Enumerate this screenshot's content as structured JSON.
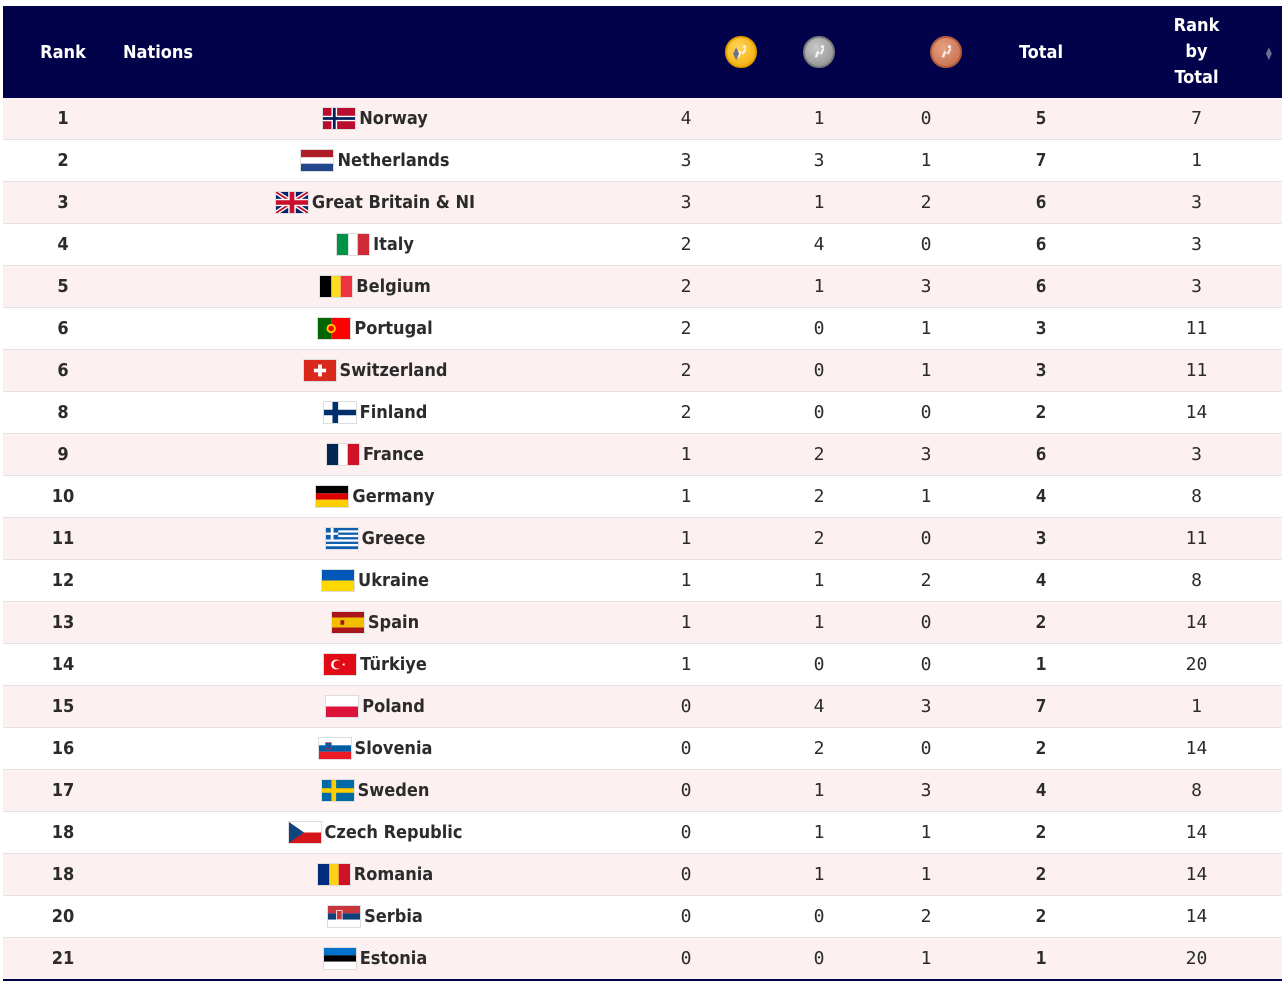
{
  "header": {
    "rank": "Rank",
    "nations": "Nations",
    "gold_icon": "gold-medal-icon",
    "silver_icon": "silver-medal-icon",
    "bronze_icon": "bronze-medal-icon",
    "total": "Total",
    "rank_by_total_line1": "Rank",
    "rank_by_total_line2": "by",
    "rank_by_total_line3": "Total",
    "sort_icon": "sort-icon"
  },
  "colors": {
    "header_bg": "#02024a",
    "row_alt_bg": "#fcf1f0",
    "gold": "#f0a800",
    "silver": "#8a8a8a",
    "bronze": "#c0684a"
  },
  "rows": [
    {
      "rank": "1",
      "flag": "norway-flag-icon",
      "nation": "Norway",
      "gold": "4",
      "silver": "1",
      "bronze": "0",
      "total": "5",
      "rank_by_total": "7"
    },
    {
      "rank": "2",
      "flag": "netherlands-flag-icon",
      "nation": "Netherlands",
      "gold": "3",
      "silver": "3",
      "bronze": "1",
      "total": "7",
      "rank_by_total": "1"
    },
    {
      "rank": "3",
      "flag": "great-britain-flag-icon",
      "nation": "Great Britain & NI",
      "gold": "3",
      "silver": "1",
      "bronze": "2",
      "total": "6",
      "rank_by_total": "3"
    },
    {
      "rank": "4",
      "flag": "italy-flag-icon",
      "nation": "Italy",
      "gold": "2",
      "silver": "4",
      "bronze": "0",
      "total": "6",
      "rank_by_total": "3"
    },
    {
      "rank": "5",
      "flag": "belgium-flag-icon",
      "nation": "Belgium",
      "gold": "2",
      "silver": "1",
      "bronze": "3",
      "total": "6",
      "rank_by_total": "3"
    },
    {
      "rank": "6",
      "flag": "portugal-flag-icon",
      "nation": "Portugal",
      "gold": "2",
      "silver": "0",
      "bronze": "1",
      "total": "3",
      "rank_by_total": "11"
    },
    {
      "rank": "6",
      "flag": "switzerland-flag-icon",
      "nation": "Switzerland",
      "gold": "2",
      "silver": "0",
      "bronze": "1",
      "total": "3",
      "rank_by_total": "11"
    },
    {
      "rank": "8",
      "flag": "finland-flag-icon",
      "nation": "Finland",
      "gold": "2",
      "silver": "0",
      "bronze": "0",
      "total": "2",
      "rank_by_total": "14"
    },
    {
      "rank": "9",
      "flag": "france-flag-icon",
      "nation": "France",
      "gold": "1",
      "silver": "2",
      "bronze": "3",
      "total": "6",
      "rank_by_total": "3"
    },
    {
      "rank": "10",
      "flag": "germany-flag-icon",
      "nation": "Germany",
      "gold": "1",
      "silver": "2",
      "bronze": "1",
      "total": "4",
      "rank_by_total": "8"
    },
    {
      "rank": "11",
      "flag": "greece-flag-icon",
      "nation": "Greece",
      "gold": "1",
      "silver": "2",
      "bronze": "0",
      "total": "3",
      "rank_by_total": "11"
    },
    {
      "rank": "12",
      "flag": "ukraine-flag-icon",
      "nation": "Ukraine",
      "gold": "1",
      "silver": "1",
      "bronze": "2",
      "total": "4",
      "rank_by_total": "8"
    },
    {
      "rank": "13",
      "flag": "spain-flag-icon",
      "nation": "Spain",
      "gold": "1",
      "silver": "1",
      "bronze": "0",
      "total": "2",
      "rank_by_total": "14"
    },
    {
      "rank": "14",
      "flag": "turkiye-flag-icon",
      "nation": "Türkiye",
      "gold": "1",
      "silver": "0",
      "bronze": "0",
      "total": "1",
      "rank_by_total": "20"
    },
    {
      "rank": "15",
      "flag": "poland-flag-icon",
      "nation": "Poland",
      "gold": "0",
      "silver": "4",
      "bronze": "3",
      "total": "7",
      "rank_by_total": "1"
    },
    {
      "rank": "16",
      "flag": "slovenia-flag-icon",
      "nation": "Slovenia",
      "gold": "0",
      "silver": "2",
      "bronze": "0",
      "total": "2",
      "rank_by_total": "14"
    },
    {
      "rank": "17",
      "flag": "sweden-flag-icon",
      "nation": "Sweden",
      "gold": "0",
      "silver": "1",
      "bronze": "3",
      "total": "4",
      "rank_by_total": "8"
    },
    {
      "rank": "18",
      "flag": "czech-republic-flag-icon",
      "nation": "Czech Republic",
      "gold": "0",
      "silver": "1",
      "bronze": "1",
      "total": "2",
      "rank_by_total": "14"
    },
    {
      "rank": "18",
      "flag": "romania-flag-icon",
      "nation": "Romania",
      "gold": "0",
      "silver": "1",
      "bronze": "1",
      "total": "2",
      "rank_by_total": "14"
    },
    {
      "rank": "20",
      "flag": "serbia-flag-icon",
      "nation": "Serbia",
      "gold": "0",
      "silver": "0",
      "bronze": "2",
      "total": "2",
      "rank_by_total": "14"
    },
    {
      "rank": "21",
      "flag": "estonia-flag-icon",
      "nation": "Estonia",
      "gold": "0",
      "silver": "0",
      "bronze": "1",
      "total": "1",
      "rank_by_total": "20"
    }
  ]
}
